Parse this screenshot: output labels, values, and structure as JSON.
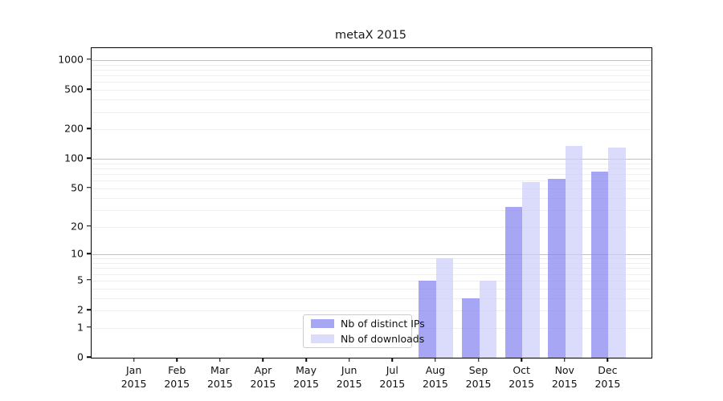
{
  "title": "metaX 2015",
  "chart_data": {
    "type": "bar",
    "title": "metaX 2015",
    "categories": [
      "Jan 2015",
      "Feb 2015",
      "Mar 2015",
      "Apr 2015",
      "May 2015",
      "Jun 2015",
      "Jul 2015",
      "Aug 2015",
      "Sep 2015",
      "Oct 2015",
      "Nov 2015",
      "Dec 2015"
    ],
    "months": [
      "Jan",
      "Feb",
      "Mar",
      "Apr",
      "May",
      "Jun",
      "Jul",
      "Aug",
      "Sep",
      "Oct",
      "Nov",
      "Dec"
    ],
    "year": "2015",
    "series": [
      {
        "name": "Nb of distinct IPs",
        "values": [
          0,
          0,
          0,
          0,
          0,
          0,
          0,
          5,
          3,
          32,
          63,
          74
        ],
        "fill": "rgba(132,132,240,0.72)",
        "swatch": "#a6a6f4"
      },
      {
        "name": "Nb of downloads",
        "values": [
          0,
          0,
          0,
          0,
          0,
          0,
          0,
          9,
          5,
          58,
          135,
          130
        ],
        "fill": "rgba(205,205,249,0.72)",
        "swatch": "#dbdbfb"
      }
    ],
    "yscale": "log1p",
    "y_ticks": [
      1000,
      500,
      200,
      100,
      50,
      20,
      10,
      5,
      2,
      1,
      0
    ],
    "ylim": [
      0,
      1324
    ],
    "xlabel": "",
    "ylabel": "",
    "grid": "horizontal",
    "major_grid_values": [
      10,
      100,
      1000
    ],
    "major_grid_color": "#c2c2c2",
    "minor_grid_color": "#efefef",
    "legend_position": "lower center-left"
  }
}
